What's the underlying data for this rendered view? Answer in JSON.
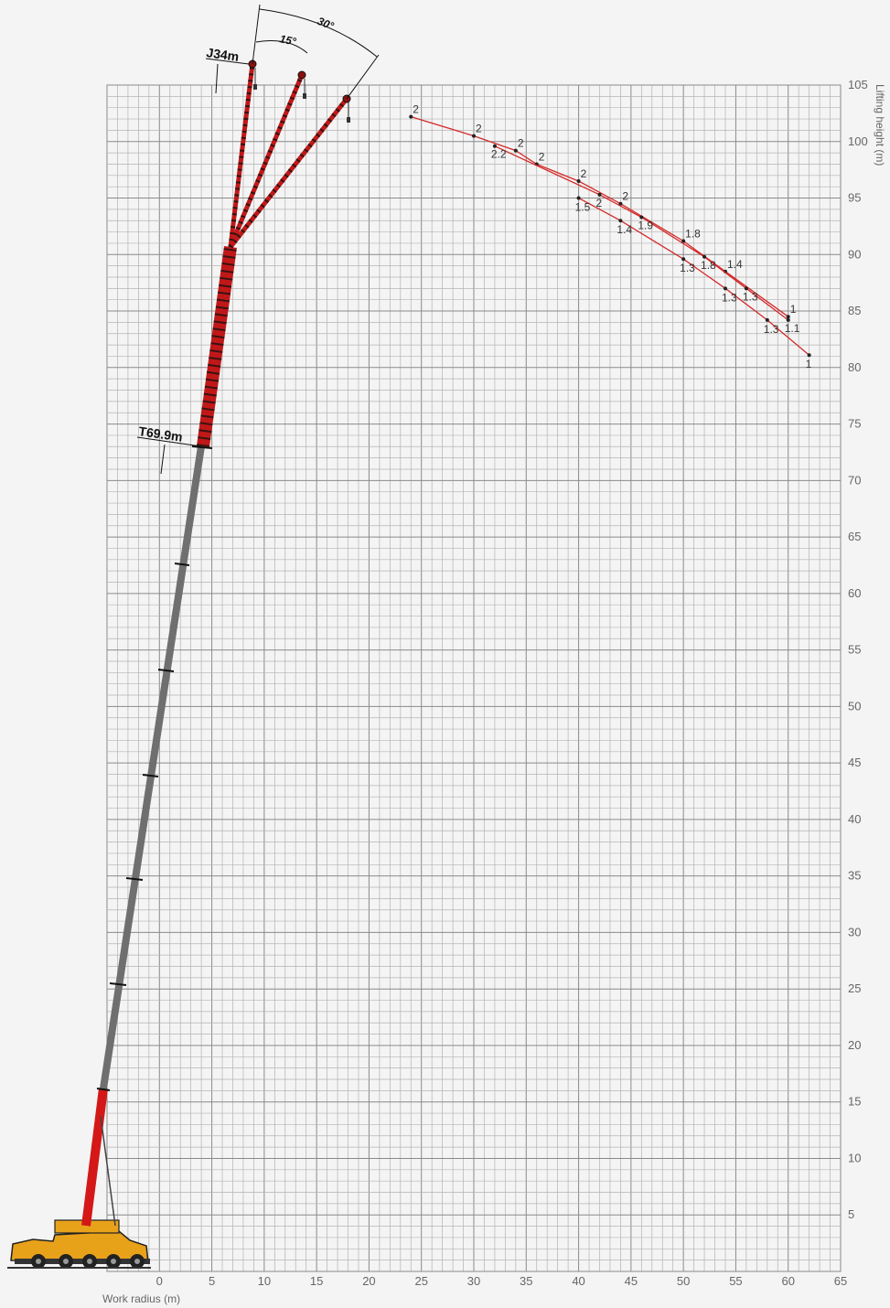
{
  "chart_data": {
    "type": "line",
    "title": "",
    "xlabel": "Work radius (m)",
    "ylabel": "Lifting height (m)",
    "xlim": [
      -5,
      65
    ],
    "ylim": [
      0,
      105
    ],
    "x_ticks": [
      0,
      5,
      10,
      15,
      20,
      25,
      30,
      35,
      40,
      45,
      50,
      55,
      60,
      65
    ],
    "y_ticks": [
      5,
      10,
      15,
      20,
      25,
      30,
      35,
      40,
      45,
      50,
      55,
      60,
      65,
      70,
      75,
      80,
      85,
      90,
      95,
      100,
      105
    ],
    "grid": true,
    "annotations": {
      "jib_length": "J34m",
      "boom_length": "T69.9m",
      "offset_small": "15°",
      "offset_large": "30°"
    },
    "series": [
      {
        "color": "#d42a2a",
        "points": [
          {
            "x": 24,
            "y": 102.2,
            "label": "2"
          },
          {
            "x": 30,
            "y": 100.5,
            "label": "2"
          },
          {
            "x": 34,
            "y": 99.2,
            "label": "2"
          },
          {
            "x": 36,
            "y": 98.0,
            "label": "2"
          },
          {
            "x": 40,
            "y": 96.5,
            "label": "2"
          },
          {
            "x": 44,
            "y": 94.5,
            "label": "2"
          },
          {
            "x": 50,
            "y": 91.2,
            "label": "1.8"
          },
          {
            "x": 54,
            "y": 88.5,
            "label": "1.4"
          },
          {
            "x": 60,
            "y": 84.5,
            "label": "1"
          }
        ]
      },
      {
        "color": "#d42a2a",
        "points": [
          {
            "x": 32,
            "y": 99.6,
            "label": "2.2"
          },
          {
            "x": 42,
            "y": 95.3,
            "label": "2"
          },
          {
            "x": 46,
            "y": 93.3,
            "label": "1.9"
          },
          {
            "x": 52,
            "y": 89.8,
            "label": "1.8"
          },
          {
            "x": 56,
            "y": 87.0,
            "label": "1.3"
          },
          {
            "x": 60,
            "y": 84.2,
            "label": "1.1"
          }
        ]
      },
      {
        "color": "#d42a2a",
        "points": [
          {
            "x": 40,
            "y": 95.0,
            "label": "1.5"
          },
          {
            "x": 44,
            "y": 93.0,
            "label": "1.4"
          },
          {
            "x": 50,
            "y": 89.6,
            "label": "1.3"
          },
          {
            "x": 54,
            "y": 87.0,
            "label": "1.3"
          },
          {
            "x": 58,
            "y": 84.2,
            "label": "1.3"
          },
          {
            "x": 62,
            "y": 81.1,
            "label": "1"
          }
        ]
      }
    ]
  },
  "colors": {
    "background": "#f4f4f4",
    "grid": "#9a9a9a",
    "curve": "#d42a2a",
    "boom_base": "#d41818",
    "boom_main": "#6f6f6f",
    "lattice": "#c01818",
    "carrier": "#e8a21a"
  }
}
